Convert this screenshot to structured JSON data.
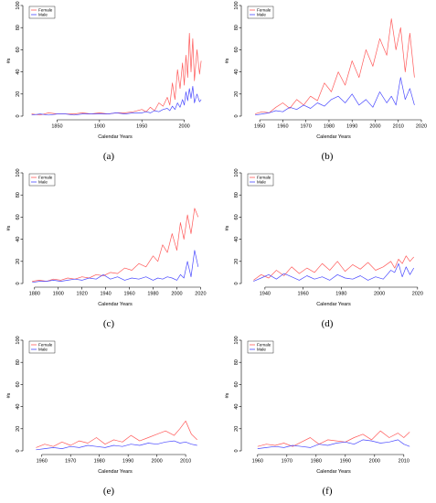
{
  "colors": {
    "female": "#ff5a5a",
    "male": "#4a4aff",
    "axis": "#000000"
  },
  "chart_data": [
    {
      "label": "(a)",
      "type": "line",
      "xlabel": "Calendar Years",
      "ylabel": "#s",
      "xlim": [
        1815,
        2022
      ],
      "ylim": [
        0,
        100
      ],
      "xticks": [
        1850,
        1900,
        1950,
        2000
      ],
      "yticks": [
        0,
        20,
        40,
        60,
        80,
        100
      ],
      "legend": [
        "Female",
        "Male"
      ],
      "legend_position": "top-left",
      "x": [
        1820,
        1830,
        1840,
        1850,
        1860,
        1870,
        1880,
        1890,
        1900,
        1910,
        1920,
        1930,
        1940,
        1950,
        1955,
        1960,
        1965,
        1970,
        1975,
        1980,
        1983,
        1986,
        1989,
        1992,
        1995,
        1998,
        2000,
        2002,
        2004,
        2006,
        2008,
        2010,
        2012,
        2015,
        2018,
        2020
      ],
      "series": [
        {
          "name": "Female",
          "values": [
            2,
            1,
            3,
            2,
            2,
            2,
            3,
            2,
            3,
            2,
            3,
            3,
            4,
            6,
            4,
            8,
            5,
            12,
            9,
            17,
            10,
            30,
            15,
            42,
            25,
            48,
            28,
            55,
            35,
            75,
            40,
            70,
            32,
            60,
            38,
            50
          ]
        },
        {
          "name": "Male",
          "values": [
            1,
            2,
            1,
            2,
            2,
            1,
            2,
            2,
            2,
            2,
            3,
            2,
            3,
            3,
            4,
            3,
            5,
            4,
            6,
            7,
            5,
            9,
            6,
            12,
            8,
            15,
            10,
            22,
            14,
            25,
            16,
            27,
            12,
            20,
            13,
            15
          ]
        }
      ]
    },
    {
      "label": "(b)",
      "type": "line",
      "xlabel": "Calendar Years",
      "ylabel": "#s",
      "xlim": [
        1944,
        2020
      ],
      "ylim": [
        0,
        100
      ],
      "xticks": [
        1950,
        1960,
        1970,
        1980,
        1990,
        2000,
        2010,
        2020
      ],
      "yticks": [
        0,
        20,
        40,
        60,
        80,
        100
      ],
      "legend": [
        "Female",
        "Male"
      ],
      "legend_position": "top-left",
      "x": [
        1948,
        1951,
        1954,
        1957,
        1960,
        1963,
        1966,
        1969,
        1972,
        1975,
        1978,
        1981,
        1984,
        1987,
        1990,
        1993,
        1996,
        1999,
        2002,
        2005,
        2007,
        2009,
        2011,
        2013,
        2015,
        2017
      ],
      "series": [
        {
          "name": "Female",
          "values": [
            2,
            4,
            3,
            8,
            12,
            7,
            15,
            10,
            18,
            14,
            30,
            22,
            40,
            28,
            50,
            35,
            60,
            45,
            70,
            55,
            88,
            60,
            80,
            40,
            75,
            35
          ]
        },
        {
          "name": "Male",
          "values": [
            1,
            2,
            3,
            5,
            4,
            8,
            6,
            10,
            7,
            12,
            9,
            15,
            18,
            12,
            20,
            10,
            15,
            8,
            22,
            12,
            18,
            10,
            35,
            15,
            25,
            10
          ]
        }
      ]
    },
    {
      "label": "(c)",
      "type": "line",
      "xlabel": "Calendar Years",
      "ylabel": "#s",
      "xlim": [
        1874,
        2022
      ],
      "ylim": [
        0,
        100
      ],
      "xticks": [
        1880,
        1900,
        1920,
        1940,
        1960,
        1980,
        2000,
        2020
      ],
      "yticks": [
        0,
        20,
        40,
        60,
        80,
        100
      ],
      "legend": [
        "Female",
        "Male"
      ],
      "legend_position": "top-left",
      "x": [
        1878,
        1884,
        1890,
        1896,
        1902,
        1908,
        1914,
        1920,
        1926,
        1932,
        1938,
        1944,
        1950,
        1956,
        1962,
        1968,
        1974,
        1980,
        1984,
        1988,
        1992,
        1996,
        2000,
        2003,
        2006,
        2009,
        2012,
        2015,
        2018
      ],
      "series": [
        {
          "name": "Female",
          "values": [
            2,
            3,
            2,
            4,
            3,
            5,
            4,
            6,
            5,
            8,
            7,
            10,
            9,
            14,
            12,
            18,
            15,
            25,
            20,
            35,
            28,
            45,
            30,
            55,
            40,
            62,
            45,
            68,
            60
          ]
        },
        {
          "name": "Male",
          "values": [
            1,
            2,
            2,
            3,
            2,
            3,
            4,
            3,
            5,
            4,
            8,
            4,
            6,
            3,
            5,
            4,
            6,
            3,
            5,
            4,
            6,
            5,
            3,
            8,
            5,
            20,
            6,
            30,
            15
          ]
        }
      ]
    },
    {
      "label": "(d)",
      "type": "line",
      "xlabel": "Calendar Years",
      "ylabel": "#s",
      "xlim": [
        1930,
        2022
      ],
      "ylim": [
        0,
        100
      ],
      "xticks": [
        1940,
        1960,
        1980,
        2000,
        2020
      ],
      "yticks": [
        0,
        20,
        40,
        60,
        80,
        100
      ],
      "legend": [
        "Female",
        "Male"
      ],
      "legend_position": "top-left",
      "x": [
        1934,
        1938,
        1942,
        1946,
        1950,
        1954,
        1958,
        1962,
        1966,
        1970,
        1974,
        1978,
        1982,
        1986,
        1990,
        1994,
        1998,
        2002,
        2006,
        2008,
        2010,
        2012,
        2014,
        2016,
        2018
      ],
      "series": [
        {
          "name": "Female",
          "values": [
            3,
            8,
            5,
            12,
            7,
            15,
            9,
            14,
            10,
            18,
            12,
            20,
            11,
            17,
            13,
            19,
            12,
            15,
            20,
            14,
            22,
            18,
            25,
            20,
            24
          ]
        },
        {
          "name": "Male",
          "values": [
            2,
            5,
            8,
            4,
            9,
            6,
            3,
            7,
            4,
            6,
            3,
            8,
            5,
            4,
            7,
            3,
            6,
            4,
            12,
            10,
            18,
            6,
            15,
            8,
            14
          ]
        }
      ]
    },
    {
      "label": "(e)",
      "type": "line",
      "xlabel": "Calendar Years",
      "ylabel": "#s",
      "xlim": [
        1955,
        2016
      ],
      "ylim": [
        0,
        100
      ],
      "xticks": [
        1960,
        1970,
        1980,
        1990,
        2000,
        2010
      ],
      "yticks": [
        0,
        20,
        40,
        60,
        80,
        100
      ],
      "legend": [
        "Female",
        "Male"
      ],
      "legend_position": "top-left",
      "x": [
        1958,
        1961,
        1964,
        1967,
        1970,
        1973,
        1976,
        1979,
        1982,
        1985,
        1988,
        1991,
        1994,
        1997,
        2000,
        2003,
        2006,
        2008,
        2010,
        2012,
        2014
      ],
      "series": [
        {
          "name": "Female",
          "values": [
            3,
            6,
            4,
            8,
            5,
            9,
            7,
            12,
            6,
            10,
            8,
            14,
            9,
            12,
            15,
            18,
            14,
            20,
            27,
            15,
            10
          ]
        },
        {
          "name": "Male",
          "values": [
            1,
            2,
            3,
            2,
            4,
            3,
            5,
            4,
            3,
            5,
            4,
            6,
            5,
            7,
            6,
            8,
            9,
            7,
            8,
            6,
            5
          ]
        }
      ]
    },
    {
      "label": "(f)",
      "type": "line",
      "xlabel": "Calendar Years",
      "ylabel": "#s",
      "xlim": [
        1956,
        2016
      ],
      "ylim": [
        0,
        100
      ],
      "xticks": [
        1960,
        1970,
        1980,
        1990,
        2000,
        2010
      ],
      "yticks": [
        0,
        20,
        40,
        60,
        80,
        100
      ],
      "legend": [
        "Female",
        "Male"
      ],
      "legend_position": "top-left",
      "x": [
        1960,
        1963,
        1966,
        1969,
        1972,
        1975,
        1978,
        1981,
        1984,
        1987,
        1990,
        1993,
        1996,
        1999,
        2002,
        2005,
        2008,
        2010,
        2012
      ],
      "series": [
        {
          "name": "Female",
          "values": [
            4,
            6,
            5,
            7,
            4,
            8,
            12,
            6,
            10,
            9,
            8,
            12,
            15,
            10,
            18,
            12,
            16,
            12,
            17
          ]
        },
        {
          "name": "Male",
          "values": [
            2,
            3,
            4,
            3,
            5,
            4,
            3,
            6,
            5,
            7,
            8,
            6,
            10,
            9,
            7,
            8,
            10,
            6,
            4
          ]
        }
      ]
    }
  ]
}
